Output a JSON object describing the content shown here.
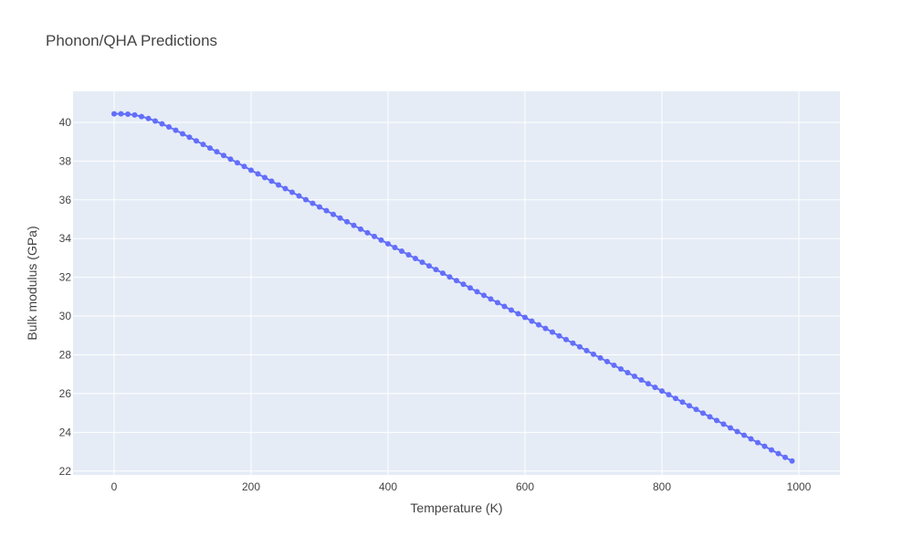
{
  "chart_data": {
    "type": "line",
    "title": "Phonon/QHA Predictions",
    "xlabel": "Temperature (K)",
    "ylabel": "Bulk modulus (GPa)",
    "xlim": [
      -60,
      1060
    ],
    "ylim": [
      21.8,
      41.6
    ],
    "x_ticks": [
      0,
      200,
      400,
      600,
      800,
      1000
    ],
    "y_ticks": [
      22,
      24,
      26,
      28,
      30,
      32,
      34,
      36,
      38,
      40
    ],
    "grid": true,
    "legend": "none",
    "series_color": "#636efa",
    "plot_bg": "#e5ecf6",
    "x": [
      0,
      10,
      20,
      30,
      40,
      50,
      60,
      70,
      80,
      90,
      100,
      110,
      120,
      130,
      140,
      150,
      160,
      170,
      180,
      190,
      200,
      210,
      220,
      230,
      240,
      250,
      260,
      270,
      280,
      290,
      300,
      310,
      320,
      330,
      340,
      350,
      360,
      370,
      380,
      390,
      400,
      410,
      420,
      430,
      440,
      450,
      460,
      470,
      480,
      490,
      500,
      510,
      520,
      530,
      540,
      550,
      560,
      570,
      580,
      590,
      600,
      610,
      620,
      630,
      640,
      650,
      660,
      670,
      680,
      690,
      700,
      710,
      720,
      730,
      740,
      750,
      760,
      770,
      780,
      790,
      800,
      810,
      820,
      830,
      840,
      850,
      860,
      870,
      880,
      890,
      900,
      910,
      920,
      930,
      940,
      950,
      960,
      970,
      980,
      990
    ],
    "values": [
      40.44,
      40.44,
      40.42,
      40.38,
      40.3,
      40.2,
      40.07,
      39.92,
      39.76,
      39.59,
      39.41,
      39.23,
      39.04,
      38.86,
      38.67,
      38.48,
      38.29,
      38.1,
      37.91,
      37.72,
      37.53,
      37.34,
      37.15,
      36.96,
      36.77,
      36.58,
      36.39,
      36.2,
      36.01,
      35.82,
      35.63,
      35.44,
      35.25,
      35.06,
      34.87,
      34.68,
      34.49,
      34.3,
      34.11,
      33.92,
      33.73,
      33.54,
      33.35,
      33.16,
      32.97,
      32.78,
      32.59,
      32.4,
      32.21,
      32.02,
      31.83,
      31.64,
      31.45,
      31.26,
      31.07,
      30.88,
      30.69,
      30.5,
      30.31,
      30.12,
      29.93,
      29.74,
      29.55,
      29.36,
      29.17,
      28.98,
      28.79,
      28.6,
      28.41,
      28.22,
      28.03,
      27.84,
      27.65,
      27.46,
      27.27,
      27.08,
      26.89,
      26.7,
      26.51,
      26.32,
      26.13,
      25.94,
      25.75,
      25.56,
      25.37,
      25.18,
      24.99,
      24.8,
      24.61,
      24.42,
      24.23,
      24.04,
      23.85,
      23.66,
      23.47,
      23.28,
      23.09,
      22.9,
      22.71,
      22.52
    ]
  }
}
